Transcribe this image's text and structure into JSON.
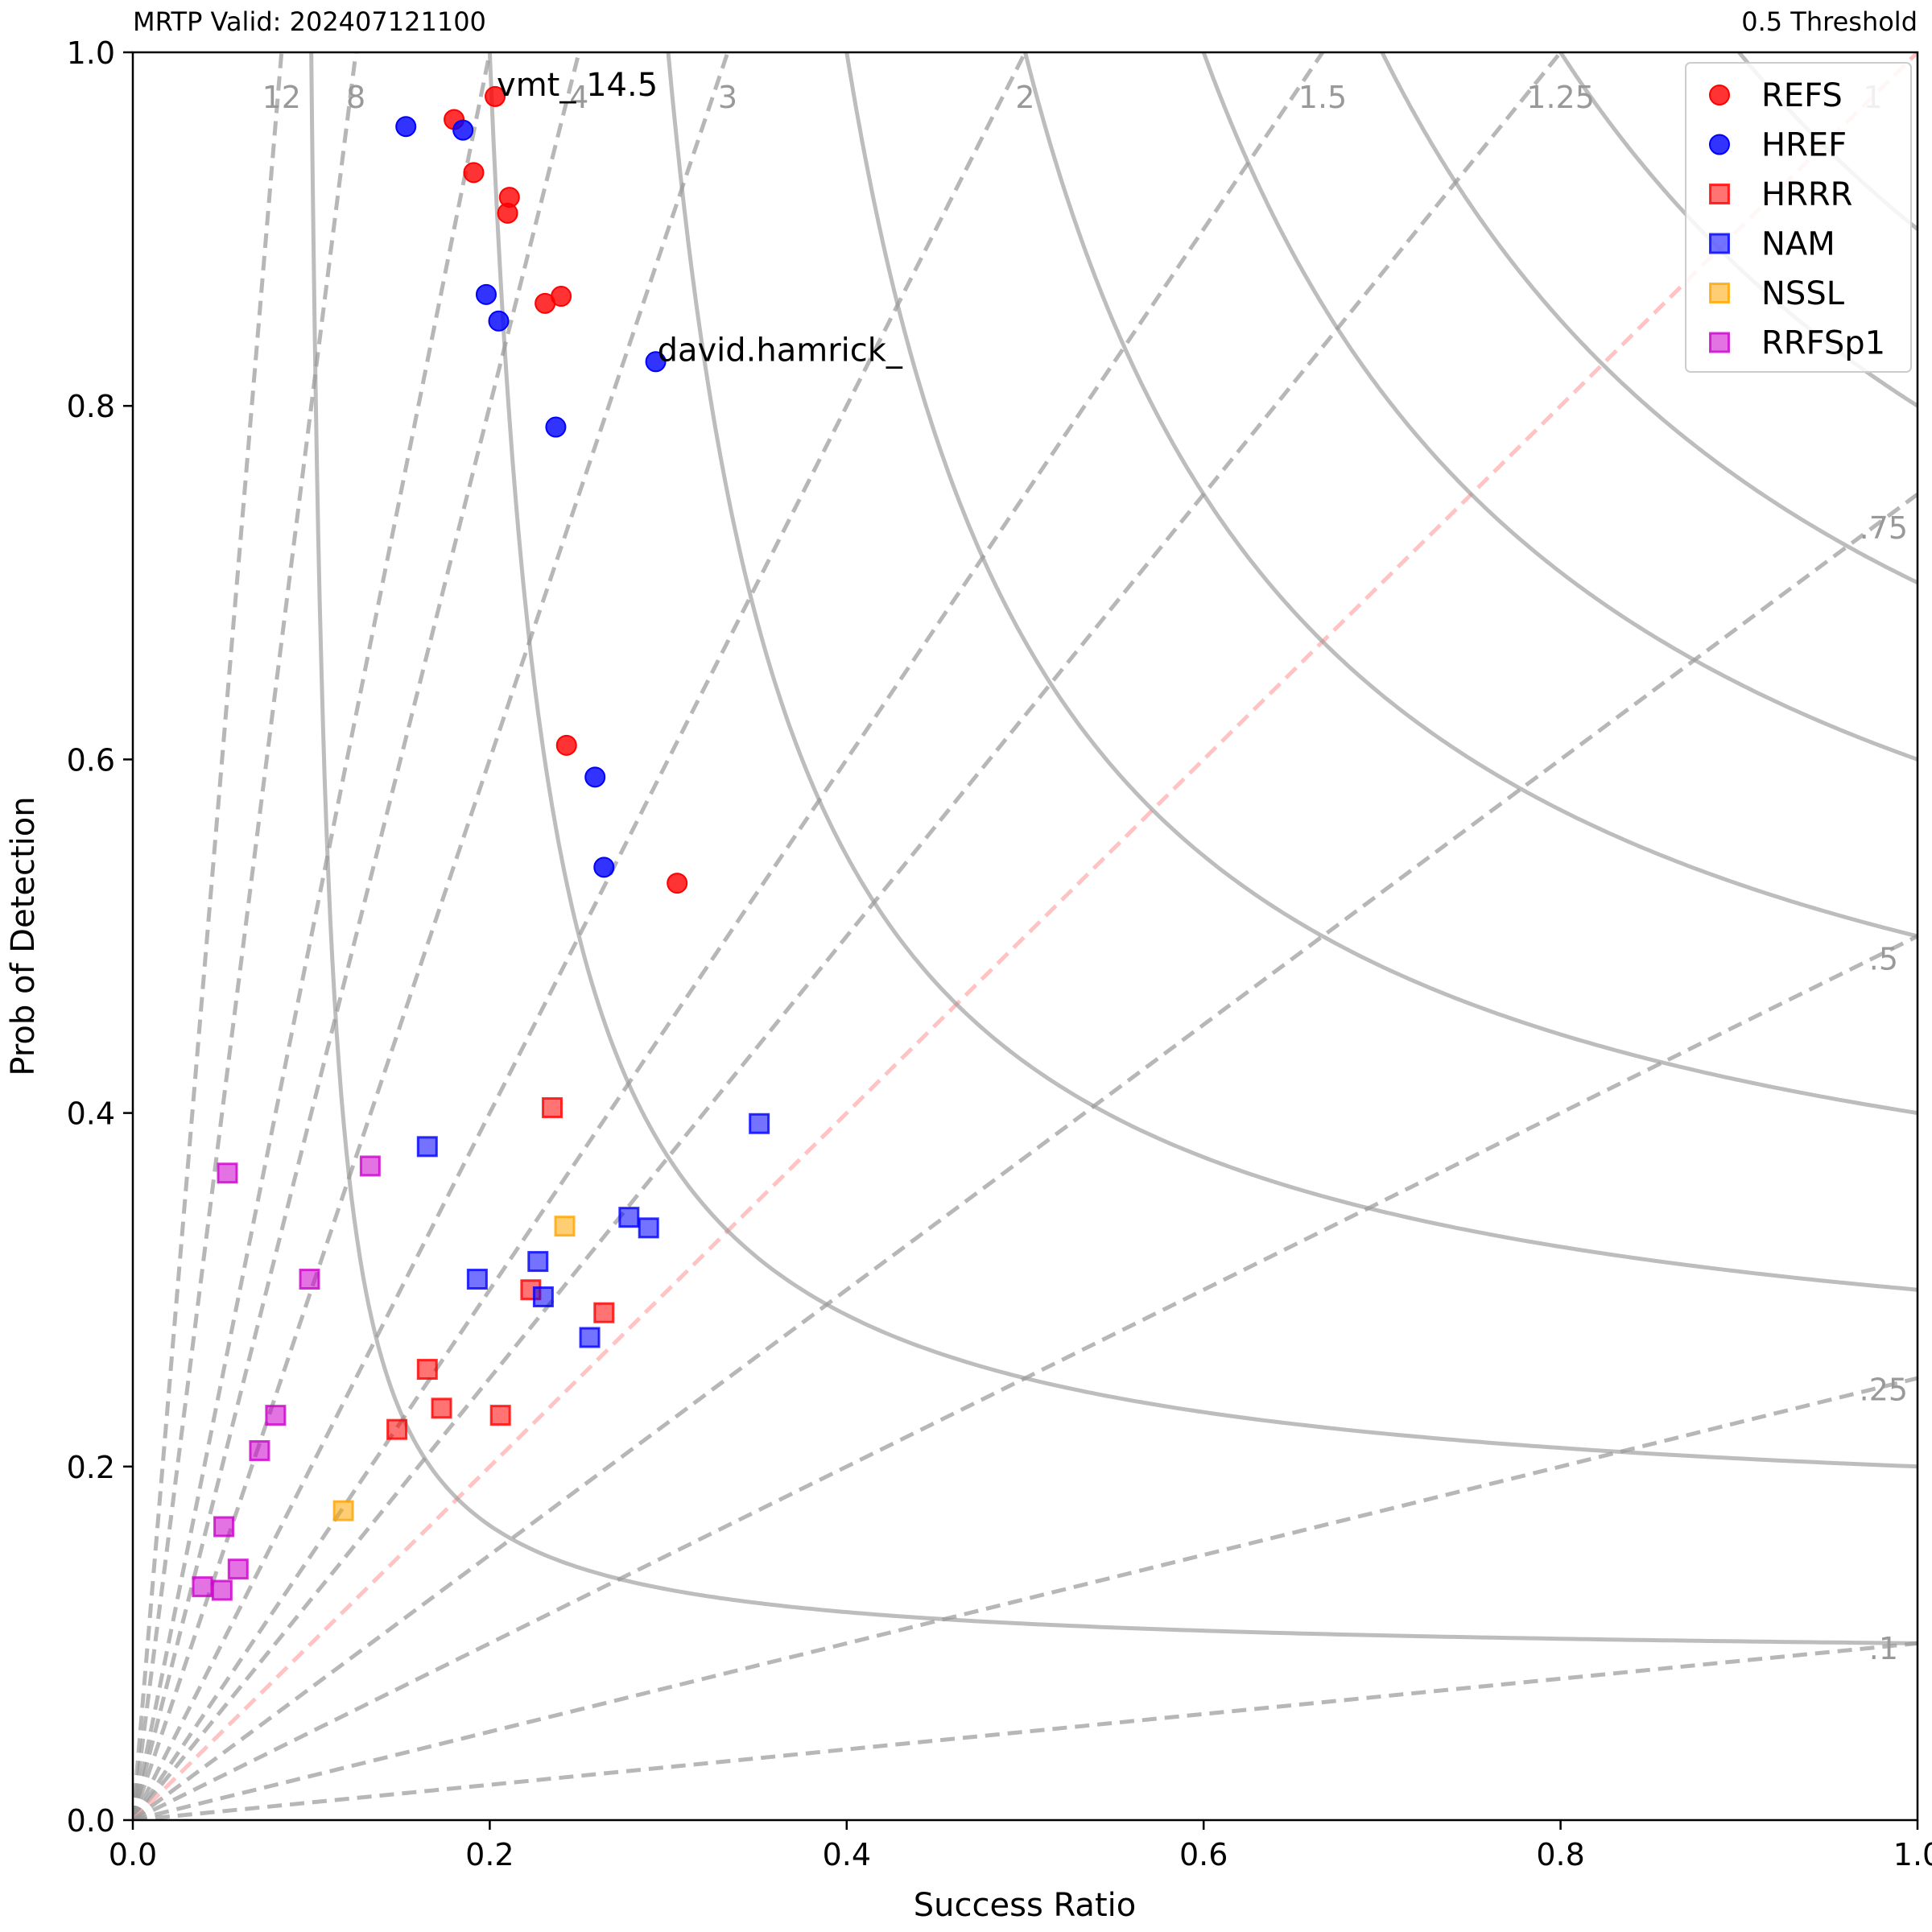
{
  "header": {
    "left": "MRTP Valid: 202407121100",
    "right": "0.5 Threshold"
  },
  "chart_data": {
    "type": "scatter",
    "title": "",
    "xlabel": "Success Ratio",
    "ylabel": "Prob of Detection",
    "xlim": [
      0,
      1
    ],
    "ylim": [
      0,
      1
    ],
    "x_ticks": [
      "0.0",
      "0.2",
      "0.4",
      "0.6",
      "0.8",
      "1.0"
    ],
    "y_ticks": [
      "0.0",
      "0.2",
      "0.4",
      "0.6",
      "0.8",
      "1.0"
    ],
    "grid": false,
    "legend_position": "top-right",
    "csi_contours": [
      0.1,
      0.2,
      0.3,
      0.4,
      0.5,
      0.6,
      0.7,
      0.8,
      0.9
    ],
    "bias_lines": [
      {
        "value": 12,
        "label": "12"
      },
      {
        "value": 8,
        "label": "8"
      },
      {
        "value": 5,
        "label": ""
      },
      {
        "value": 4,
        "label": "4"
      },
      {
        "value": 3,
        "label": "3"
      },
      {
        "value": 2,
        "label": "2"
      },
      {
        "value": 1.5,
        "label": "1.5"
      },
      {
        "value": 1.25,
        "label": "1.25"
      },
      {
        "value": 1,
        "label": "1"
      },
      {
        "value": 0.75,
        "label": ".75"
      },
      {
        "value": 0.5,
        "label": ".5"
      },
      {
        "value": 0.25,
        "label": ".25"
      },
      {
        "value": 0.1,
        "label": ".1"
      }
    ],
    "series": [
      {
        "name": "REFS",
        "marker": "circle",
        "color": "#ff0000",
        "points": [
          [
            0.18,
            0.962
          ],
          [
            0.203,
            0.975
          ],
          [
            0.191,
            0.932
          ],
          [
            0.211,
            0.918
          ],
          [
            0.21,
            0.909
          ],
          [
            0.231,
            0.858
          ],
          [
            0.24,
            0.862
          ],
          [
            0.243,
            0.608
          ],
          [
            0.305,
            0.53
          ]
        ]
      },
      {
        "name": "HREF",
        "marker": "circle",
        "color": "#0000ff",
        "points": [
          [
            0.153,
            0.958
          ],
          [
            0.185,
            0.956
          ],
          [
            0.198,
            0.863
          ],
          [
            0.205,
            0.848
          ],
          [
            0.293,
            0.825
          ],
          [
            0.237,
            0.788
          ],
          [
            0.259,
            0.59
          ],
          [
            0.264,
            0.539
          ]
        ]
      },
      {
        "name": "HRRR",
        "marker": "square",
        "color": "#ff0000",
        "points": [
          [
            0.235,
            0.403
          ],
          [
            0.223,
            0.3
          ],
          [
            0.264,
            0.287
          ],
          [
            0.165,
            0.255
          ],
          [
            0.173,
            0.233
          ],
          [
            0.148,
            0.221
          ],
          [
            0.206,
            0.229
          ]
        ]
      },
      {
        "name": "NAM",
        "marker": "square",
        "color": "#0000ff",
        "points": [
          [
            0.165,
            0.381
          ],
          [
            0.351,
            0.394
          ],
          [
            0.278,
            0.341
          ],
          [
            0.289,
            0.335
          ],
          [
            0.227,
            0.316
          ],
          [
            0.193,
            0.306
          ],
          [
            0.23,
            0.296
          ],
          [
            0.256,
            0.273
          ]
        ]
      },
      {
        "name": "NSSL",
        "marker": "square",
        "color": "#ffa500",
        "points": [
          [
            0.242,
            0.336
          ],
          [
            0.118,
            0.175
          ]
        ]
      },
      {
        "name": "RRFSp1",
        "marker": "square",
        "color": "#cc00cc",
        "points": [
          [
            0.053,
            0.366
          ],
          [
            0.133,
            0.37
          ],
          [
            0.099,
            0.306
          ],
          [
            0.08,
            0.229
          ],
          [
            0.071,
            0.209
          ],
          [
            0.051,
            0.166
          ],
          [
            0.059,
            0.142
          ],
          [
            0.039,
            0.132
          ],
          [
            0.05,
            0.13
          ]
        ]
      }
    ],
    "annotations": [
      {
        "text": "vmt_ 14.5",
        "x": 0.203,
        "y": 0.975
      },
      {
        "text": "david.hamrick_",
        "x": 0.293,
        "y": 0.825
      }
    ]
  }
}
